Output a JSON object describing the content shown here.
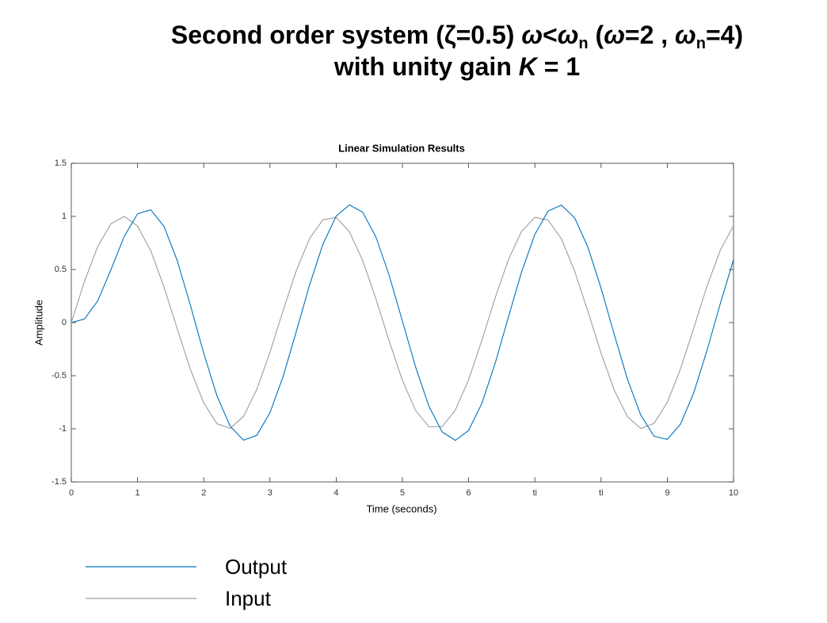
{
  "heading": {
    "line1": [
      "Second order system (ζ=0.5) ",
      "ω",
      "<",
      "ω",
      "n",
      " (",
      "ω",
      "=2 , ",
      "ω",
      "n",
      "=4)"
    ],
    "line2": [
      "with unity gain ",
      "K",
      " = 1"
    ]
  },
  "chart_data": {
    "type": "line",
    "title": "Linear Simulation Results",
    "x_label": "Time (seconds)",
    "y_label": "Amplitude",
    "x": [
      0,
      0.2,
      0.4,
      0.6,
      0.8,
      1,
      1.2,
      1.4,
      1.6,
      1.8,
      2,
      2.2,
      2.4,
      2.6,
      2.8,
      3,
      3.2,
      3.4,
      3.6,
      3.8,
      4,
      4.2,
      4.4,
      4.6,
      4.8,
      5,
      5.2,
      5.4,
      5.6,
      5.8,
      6,
      6.2,
      6.4,
      6.6,
      6.8,
      7,
      7.2,
      7.4,
      7.6,
      7.8,
      8,
      8.2,
      8.4,
      8.6,
      8.8,
      9,
      9.2,
      9.4,
      9.6,
      9.8,
      10
    ],
    "series": [
      {
        "name": "Output",
        "color": "#0072bd",
        "values": [
          0,
          0.034,
          0.206,
          0.5,
          0.812,
          1.024,
          1.062,
          0.905,
          0.584,
          0.16,
          -0.289,
          -0.69,
          -0.977,
          -1.107,
          -1.062,
          -0.849,
          -0.504,
          -0.079,
          0.358,
          0.739,
          1.003,
          1.108,
          1.039,
          0.806,
          0.445,
          0.014,
          -0.419,
          -0.787,
          -1.029,
          -1.109,
          -1.015,
          -0.76,
          -0.385,
          0.051,
          0.478,
          0.83,
          1.05,
          1.106,
          0.987,
          0.712,
          0.324,
          -0.115,
          -0.537,
          -0.872,
          -1.07,
          -1.1,
          -0.955,
          -0.66,
          -0.26,
          0.178,
          0.592
        ]
      },
      {
        "name": "Input",
        "color": "#9e9e9e",
        "values": [
          0,
          0.389,
          0.717,
          0.932,
          1,
          0.909,
          0.676,
          0.335,
          -0.058,
          -0.443,
          -0.757,
          -0.952,
          -0.996,
          -0.884,
          -0.631,
          -0.279,
          0.117,
          0.494,
          0.794,
          0.968,
          0.989,
          0.855,
          0.585,
          0.223,
          -0.174,
          -0.544,
          -0.828,
          -0.981,
          -0.979,
          -0.823,
          -0.537,
          -0.166,
          0.232,
          0.592,
          0.859,
          0.991,
          0.966,
          0.789,
          0.486,
          0.108,
          -0.288,
          -0.638,
          -0.888,
          -0.997,
          -0.949,
          -0.751,
          -0.435,
          -0.05,
          0.344,
          0.681,
          0.913
        ]
      }
    ],
    "xlim": [
      0,
      10
    ],
    "ylim": [
      -1.5,
      1.5
    ],
    "xticks": [
      0,
      1,
      2,
      3,
      4,
      5,
      6,
      {
        "value": 7,
        "label": "ti"
      },
      {
        "value": 8,
        "label": "ti"
      },
      9,
      10
    ],
    "yticks": [
      -1.5,
      -1,
      -0.5,
      0,
      0.5,
      1,
      1.5
    ],
    "grid": false,
    "legend": "bottom-left"
  }
}
